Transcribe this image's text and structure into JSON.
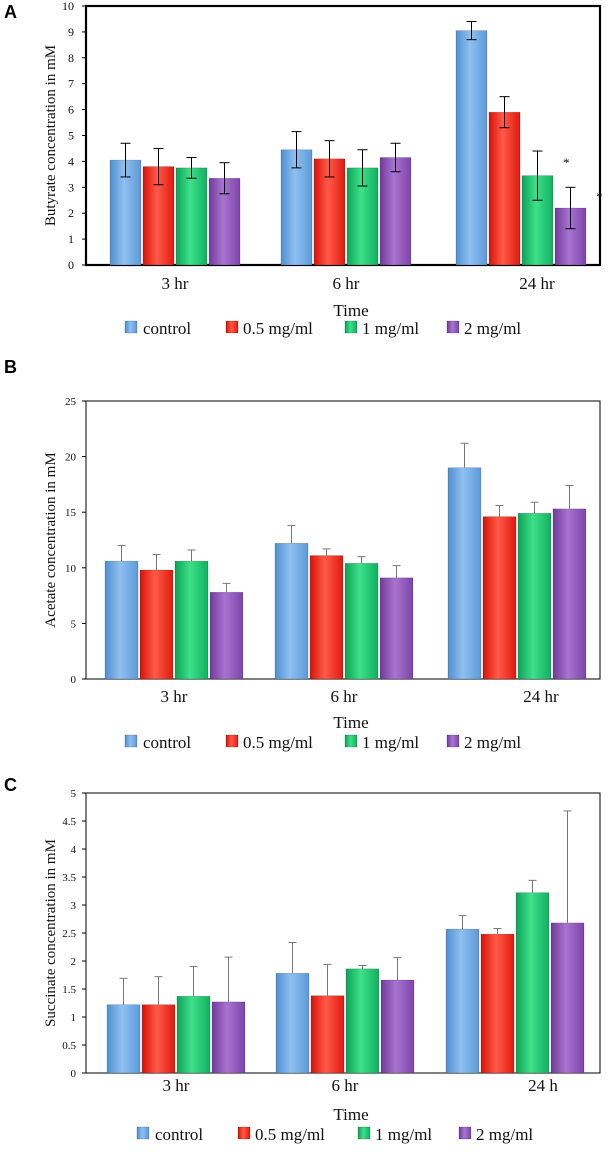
{
  "series_names": [
    "control",
    "0.5 mg/ml",
    "1 mg/ml",
    "2 mg/ml"
  ],
  "series_colors": [
    "#6aa6e0",
    "#ff2a1a",
    "#13c46a",
    "#8d4fb8"
  ],
  "chart_data": [
    {
      "panel": "A",
      "type": "bar",
      "title": "",
      "xlabel": "Time",
      "ylabel": "Butyrate concentration in mM",
      "categories": [
        "3 hr",
        "6 hr",
        "24 hr"
      ],
      "ylim": [
        0,
        10
      ],
      "yticks": [
        "0",
        "1",
        "2",
        "3",
        "4",
        "5",
        "6",
        "7",
        "8",
        "9",
        "10"
      ],
      "grid": false,
      "legend": "bottom",
      "series": [
        {
          "name": "control",
          "values": [
            4.05,
            4.45,
            9.05
          ],
          "errors": [
            0.65,
            0.7,
            0.35
          ]
        },
        {
          "name": "0.5 mg/ml",
          "values": [
            3.8,
            4.1,
            5.9
          ],
          "errors": [
            0.7,
            0.7,
            0.6
          ]
        },
        {
          "name": "1 mg/ml",
          "values": [
            3.75,
            3.75,
            3.45
          ],
          "errors": [
            0.4,
            0.7,
            0.95
          ]
        },
        {
          "name": "2 mg/ml",
          "values": [
            3.35,
            4.15,
            2.2
          ],
          "errors": [
            0.6,
            0.55,
            0.8
          ]
        }
      ],
      "annotations": [
        {
          "text": "*",
          "category": "24 hr",
          "series": "1 mg/ml"
        },
        {
          "text": "*",
          "category": "24 hr",
          "series": "2 mg/ml"
        }
      ]
    },
    {
      "panel": "B",
      "type": "bar",
      "title": "",
      "xlabel": "Time",
      "ylabel": "Acetate concentration in mM",
      "categories": [
        "3 hr",
        "6 hr",
        "24 hr"
      ],
      "ylim": [
        0,
        25
      ],
      "yticks": [
        "0",
        "5",
        "10",
        "15",
        "20",
        "25"
      ],
      "grid": false,
      "legend": "bottom",
      "series": [
        {
          "name": "control",
          "values": [
            10.6,
            12.2,
            19.0
          ],
          "errors": [
            1.4,
            1.6,
            2.2
          ]
        },
        {
          "name": "0.5 mg/ml",
          "values": [
            9.8,
            11.1,
            14.6
          ],
          "errors": [
            1.4,
            0.6,
            1.0
          ]
        },
        {
          "name": "1 mg/ml",
          "values": [
            10.6,
            10.4,
            14.9
          ],
          "errors": [
            1.0,
            0.6,
            1.0
          ]
        },
        {
          "name": "2 mg/ml",
          "values": [
            7.8,
            9.1,
            15.3
          ],
          "errors": [
            0.8,
            1.1,
            2.1
          ]
        }
      ],
      "annotations": []
    },
    {
      "panel": "C",
      "type": "bar",
      "title": "",
      "xlabel": "Time",
      "ylabel": "Succinate concentration in mM",
      "categories": [
        "3 hr",
        "6 hr",
        "24 h"
      ],
      "ylim": [
        0,
        5
      ],
      "yticks": [
        "0",
        "0.5",
        "1",
        "1.5",
        "2",
        "2.5",
        "3",
        "3.5",
        "4",
        "4.5",
        "5"
      ],
      "grid": false,
      "legend": "bottom",
      "series": [
        {
          "name": "control",
          "values": [
            1.22,
            1.78,
            2.57
          ],
          "errors": [
            0.47,
            0.55,
            0.24
          ]
        },
        {
          "name": "0.5 mg/ml",
          "values": [
            1.22,
            1.38,
            2.48
          ],
          "errors": [
            0.5,
            0.56,
            0.1
          ]
        },
        {
          "name": "1 mg/ml",
          "values": [
            1.37,
            1.86,
            3.22
          ],
          "errors": [
            0.53,
            0.06,
            0.22
          ]
        },
        {
          "name": "2 mg/ml",
          "values": [
            1.27,
            1.66,
            2.68
          ],
          "errors": [
            0.8,
            0.4,
            2.0
          ]
        }
      ],
      "annotations": []
    }
  ]
}
